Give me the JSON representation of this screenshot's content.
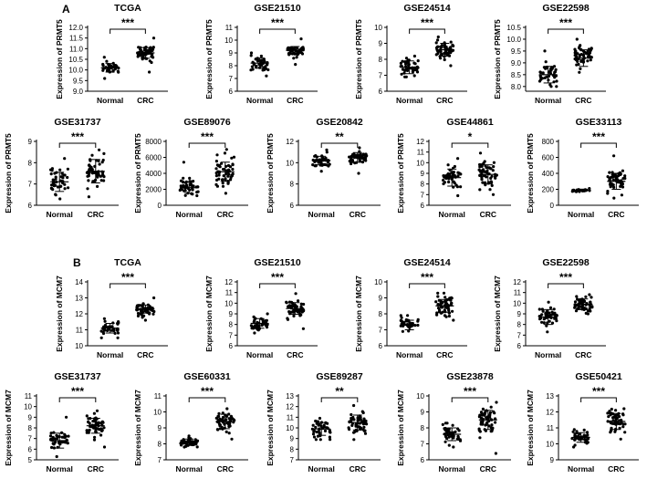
{
  "panel_labels": [
    "A",
    "B"
  ],
  "chart_data": [
    {
      "type": "scatter",
      "title": "TCGA",
      "ylabel": "Expression of PRMT5",
      "categories": [
        "Normal",
        "CRC"
      ],
      "yticks": [
        "9.0",
        "9.5",
        "10.0",
        "10.5",
        "11.0",
        "11.5",
        "12.0"
      ],
      "ylim": [
        9.0,
        12.0
      ],
      "significance": "***",
      "series": [
        {
          "name": "Normal",
          "mean": 10.1,
          "sd": 0.2,
          "min": 9.6,
          "max": 10.6
        },
        {
          "name": "CRC",
          "mean": 10.8,
          "sd": 0.25,
          "min": 9.9,
          "max": 11.5
        }
      ]
    },
    {
      "type": "scatter",
      "title": "GSE21510",
      "ylabel": "Expression of PRMT5",
      "categories": [
        "Normal",
        "CRC"
      ],
      "yticks": [
        "6",
        "7",
        "8",
        "9",
        "10",
        "11"
      ],
      "ylim": [
        6,
        11
      ],
      "significance": "***",
      "series": [
        {
          "name": "Normal",
          "mean": 8.2,
          "sd": 0.4,
          "min": 7.2,
          "max": 9.0
        },
        {
          "name": "CRC",
          "mean": 9.2,
          "sd": 0.3,
          "min": 8.1,
          "max": 10.1
        }
      ]
    },
    {
      "type": "scatter",
      "title": "GSE24514",
      "ylabel": "Expression of PRMT5",
      "categories": [
        "Normal",
        "CRC"
      ],
      "yticks": [
        "6",
        "7",
        "8",
        "9",
        "10"
      ],
      "ylim": [
        6,
        10
      ],
      "significance": "***",
      "series": [
        {
          "name": "Normal",
          "mean": 7.5,
          "sd": 0.4,
          "min": 6.9,
          "max": 8.2
        },
        {
          "name": "CRC",
          "mean": 8.6,
          "sd": 0.4,
          "min": 7.6,
          "max": 9.4
        }
      ]
    },
    {
      "type": "scatter",
      "title": "GSE22598",
      "ylabel": "Expression of PRMT5",
      "categories": [
        "Normal",
        "CRC"
      ],
      "yticks": [
        "8.0",
        "8.5",
        "9.0",
        "9.5",
        "10.0",
        "10.5"
      ],
      "ylim": [
        7.8,
        10.5
      ],
      "significance": "***",
      "series": [
        {
          "name": "Normal",
          "mean": 8.5,
          "sd": 0.35,
          "min": 8.0,
          "max": 9.5
        },
        {
          "name": "CRC",
          "mean": 9.2,
          "sd": 0.35,
          "min": 8.6,
          "max": 10.0
        }
      ]
    },
    {
      "type": "scatter",
      "title": "GSE31737",
      "ylabel": "Expression of PRMT5",
      "categories": [
        "Normal",
        "CRC"
      ],
      "yticks": [
        "6",
        "7",
        "8",
        "9"
      ],
      "ylim": [
        6,
        9
      ],
      "significance": "***",
      "series": [
        {
          "name": "Normal",
          "mean": 7.1,
          "sd": 0.45,
          "min": 6.3,
          "max": 8.2
        },
        {
          "name": "CRC",
          "mean": 7.6,
          "sd": 0.55,
          "min": 6.4,
          "max": 8.6
        }
      ]
    },
    {
      "type": "scatter",
      "title": "GSE89076",
      "ylabel": "Expression of PRMT5",
      "categories": [
        "Normal",
        "CRC"
      ],
      "yticks": [
        "0",
        "2000",
        "4000",
        "6000",
        "8000"
      ],
      "ylim": [
        0,
        8000
      ],
      "significance": "***",
      "series": [
        {
          "name": "Normal",
          "mean": 2200,
          "sd": 700,
          "min": 1200,
          "max": 5400
        },
        {
          "name": "CRC",
          "mean": 4200,
          "sd": 1200,
          "min": 1500,
          "max": 7000
        }
      ]
    },
    {
      "type": "scatter",
      "title": "GSE20842",
      "ylabel": "Expression of PRMT5",
      "categories": [
        "Normal",
        "CRC"
      ],
      "yticks": [
        "6",
        "8",
        "10",
        "12"
      ],
      "ylim": [
        6,
        12
      ],
      "significance": "**",
      "series": [
        {
          "name": "Normal",
          "mean": 10.2,
          "sd": 0.4,
          "min": 9.2,
          "max": 11.2
        },
        {
          "name": "CRC",
          "mean": 10.5,
          "sd": 0.45,
          "min": 9.0,
          "max": 11.4
        }
      ]
    },
    {
      "type": "scatter",
      "title": "GSE44861",
      "ylabel": "Expression of PRMT5",
      "categories": [
        "Normal",
        "CRC"
      ],
      "yticks": [
        "6",
        "7",
        "8",
        "9",
        "10",
        "11",
        "12"
      ],
      "ylim": [
        6,
        12
      ],
      "significance": "*",
      "series": [
        {
          "name": "Normal",
          "mean": 8.6,
          "sd": 0.8,
          "min": 6.9,
          "max": 10.4
        },
        {
          "name": "CRC",
          "mean": 8.9,
          "sd": 0.9,
          "min": 7.0,
          "max": 10.9
        }
      ]
    },
    {
      "type": "scatter",
      "title": "GSE33113",
      "ylabel": "Expression of PRMT5",
      "categories": [
        "Normal",
        "CRC"
      ],
      "yticks": [
        "0",
        "200",
        "400",
        "600",
        "800"
      ],
      "ylim": [
        0,
        800
      ],
      "significance": "***",
      "series": [
        {
          "name": "Normal",
          "mean": 190,
          "sd": 12,
          "min": 170,
          "max": 210
        },
        {
          "name": "CRC",
          "mean": 300,
          "sd": 100,
          "min": 90,
          "max": 620
        }
      ]
    },
    {
      "type": "scatter",
      "title": "TCGA",
      "ylabel": "Expression of MCM7",
      "categories": [
        "Normal",
        "CRC"
      ],
      "yticks": [
        "10",
        "11",
        "12",
        "13",
        "14"
      ],
      "ylim": [
        10,
        14
      ],
      "significance": "***",
      "series": [
        {
          "name": "Normal",
          "mean": 11.1,
          "sd": 0.3,
          "min": 10.5,
          "max": 11.7
        },
        {
          "name": "CRC",
          "mean": 12.3,
          "sd": 0.25,
          "min": 11.6,
          "max": 13.0
        }
      ]
    },
    {
      "type": "scatter",
      "title": "GSE21510",
      "ylabel": "Expression of MCM7",
      "categories": [
        "Normal",
        "CRC"
      ],
      "yticks": [
        "6",
        "7",
        "8",
        "9",
        "10",
        "11",
        "12"
      ],
      "ylim": [
        6,
        12
      ],
      "significance": "***",
      "series": [
        {
          "name": "Normal",
          "mean": 8.1,
          "sd": 0.45,
          "min": 7.2,
          "max": 9.0
        },
        {
          "name": "CRC",
          "mean": 9.5,
          "sd": 0.55,
          "min": 7.6,
          "max": 10.9
        }
      ]
    },
    {
      "type": "scatter",
      "title": "GSE24514",
      "ylabel": "Expression of MCM7",
      "categories": [
        "Normal",
        "CRC"
      ],
      "yticks": [
        "6",
        "7",
        "8",
        "9",
        "10"
      ],
      "ylim": [
        6,
        10
      ],
      "significance": "***",
      "series": [
        {
          "name": "Normal",
          "mean": 7.3,
          "sd": 0.3,
          "min": 6.9,
          "max": 7.9
        },
        {
          "name": "CRC",
          "mean": 8.5,
          "sd": 0.4,
          "min": 7.6,
          "max": 9.3
        }
      ]
    },
    {
      "type": "scatter",
      "title": "GSE22598",
      "ylabel": "Expression of MCM7",
      "categories": [
        "Normal",
        "CRC"
      ],
      "yticks": [
        "6",
        "7",
        "8",
        "9",
        "10",
        "11",
        "12"
      ],
      "ylim": [
        6,
        12
      ],
      "significance": "***",
      "series": [
        {
          "name": "Normal",
          "mean": 8.7,
          "sd": 0.7,
          "min": 7.3,
          "max": 10.1
        },
        {
          "name": "CRC",
          "mean": 9.9,
          "sd": 0.5,
          "min": 9.0,
          "max": 10.8
        }
      ]
    },
    {
      "type": "scatter",
      "title": "GSE31737",
      "ylabel": "Expression of MCM7",
      "categories": [
        "Normal",
        "CRC"
      ],
      "yticks": [
        "5",
        "6",
        "7",
        "8",
        "9",
        "10",
        "11"
      ],
      "ylim": [
        5,
        11
      ],
      "significance": "***",
      "series": [
        {
          "name": "Normal",
          "mean": 6.8,
          "sd": 0.7,
          "min": 5.3,
          "max": 9.0
        },
        {
          "name": "CRC",
          "mean": 8.2,
          "sd": 0.7,
          "min": 6.2,
          "max": 9.6
        }
      ]
    },
    {
      "type": "scatter",
      "title": "GSE60331",
      "ylabel": "Expression of MCM7",
      "categories": [
        "Normal",
        "CRC"
      ],
      "yticks": [
        "7",
        "8",
        "9",
        "10",
        "11"
      ],
      "ylim": [
        7,
        11
      ],
      "significance": "***",
      "series": [
        {
          "name": "Normal",
          "mean": 8.1,
          "sd": 0.2,
          "min": 7.8,
          "max": 8.5
        },
        {
          "name": "CRC",
          "mean": 9.4,
          "sd": 0.45,
          "min": 8.3,
          "max": 10.2
        }
      ]
    },
    {
      "type": "scatter",
      "title": "GSE89287",
      "ylabel": "Expression of MCM7",
      "categories": [
        "Normal",
        "CRC"
      ],
      "yticks": [
        "7",
        "8",
        "9",
        "10",
        "11",
        "12",
        "13"
      ],
      "ylim": [
        7,
        13
      ],
      "significance": "**",
      "series": [
        {
          "name": "Normal",
          "mean": 9.9,
          "sd": 0.6,
          "min": 8.9,
          "max": 10.9
        },
        {
          "name": "CRC",
          "mean": 10.5,
          "sd": 0.7,
          "min": 8.9,
          "max": 12.1
        }
      ]
    },
    {
      "type": "scatter",
      "title": "GSE23878",
      "ylabel": "Expression of MCM7",
      "categories": [
        "Normal",
        "CRC"
      ],
      "yticks": [
        "6",
        "7",
        "8",
        "9",
        "10"
      ],
      "ylim": [
        6,
        10
      ],
      "significance": "***",
      "series": [
        {
          "name": "Normal",
          "mean": 7.6,
          "sd": 0.4,
          "min": 6.8,
          "max": 8.3
        },
        {
          "name": "CRC",
          "mean": 8.5,
          "sd": 0.6,
          "min": 6.4,
          "max": 9.6
        }
      ]
    },
    {
      "type": "scatter",
      "title": "GSE50421",
      "ylabel": "Expression of MCM7",
      "categories": [
        "Normal",
        "CRC"
      ],
      "yticks": [
        "9",
        "10",
        "11",
        "12",
        "13"
      ],
      "ylim": [
        9,
        13
      ],
      "significance": "***",
      "series": [
        {
          "name": "Normal",
          "mean": 10.4,
          "sd": 0.3,
          "min": 9.8,
          "max": 10.9
        },
        {
          "name": "CRC",
          "mean": 11.4,
          "sd": 0.5,
          "min": 10.3,
          "max": 12.2
        }
      ]
    }
  ]
}
